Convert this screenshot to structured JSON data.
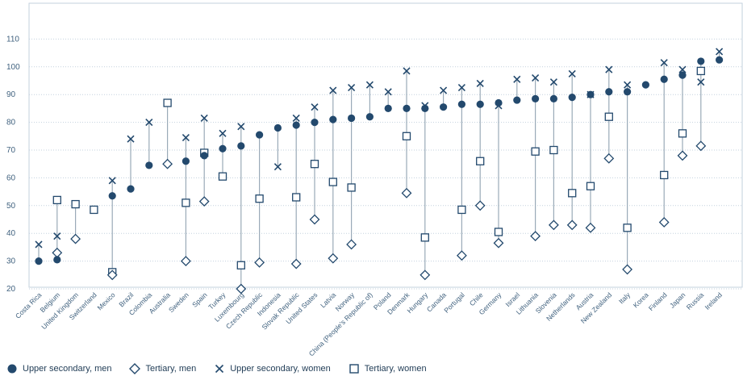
{
  "chart_data": {
    "type": "scatter",
    "title": "",
    "xlabel": "",
    "ylabel": "",
    "ylim": [
      15,
      112
    ],
    "yticks": [
      20,
      30,
      40,
      50,
      60,
      70,
      80,
      90,
      100,
      110
    ],
    "categories": [
      "Costa Rica",
      "Belgium",
      "United Kingdom",
      "Switzerland",
      "Mexico",
      "Brazil",
      "Colombia",
      "Australia",
      "Sweden",
      "Spain",
      "Turkey",
      "Luxembourg",
      "Czech Republic",
      "Indonesia",
      "Slovak Republic",
      "United States",
      "Latvia",
      "Norway",
      "China (People's Republic of)",
      "Poland",
      "Denmark",
      "Hungary",
      "Canada",
      "Portugal",
      "Chile",
      "Germany",
      "Israel",
      "Lithuania",
      "Slovenia",
      "Netherlands",
      "Austria",
      "New Zealand",
      "Italy",
      "Korea",
      "Finland",
      "Japan",
      "Russia",
      "Ireland"
    ],
    "series": [
      {
        "name": "Upper secondary, men",
        "marker": "circle",
        "values": [
          30,
          30.5,
          null,
          null,
          53.5,
          56,
          64.5,
          null,
          66,
          68,
          70.5,
          71.5,
          75.5,
          78,
          79,
          80,
          81,
          81.5,
          82,
          85,
          85,
          85,
          85.5,
          86.5,
          86.5,
          87,
          88,
          88.5,
          88.5,
          89,
          90,
          91,
          91,
          93.5,
          95.5,
          97,
          102,
          102.5
        ]
      },
      {
        "name": "Tertiary, men",
        "marker": "diamond",
        "values": [
          null,
          33,
          38,
          null,
          25,
          null,
          null,
          65,
          30,
          51.5,
          null,
          20,
          29.5,
          null,
          29,
          45,
          31,
          36,
          null,
          null,
          54.5,
          25,
          null,
          32,
          50,
          36.5,
          null,
          39,
          43,
          43,
          42,
          67,
          27,
          null,
          44,
          68,
          71.5,
          null
        ]
      },
      {
        "name": "Upper secondary, women",
        "marker": "x",
        "values": [
          36,
          39,
          null,
          null,
          59,
          74,
          80,
          null,
          74.5,
          81.5,
          76,
          78.5,
          null,
          64,
          81.5,
          85.5,
          91.5,
          92.5,
          93.5,
          91,
          98.5,
          86,
          91.5,
          92.5,
          94,
          86,
          95.5,
          96,
          94.5,
          97.5,
          90,
          99,
          93.5,
          null,
          101.5,
          99,
          94.5,
          105.5
        ]
      },
      {
        "name": "Tertiary, women",
        "marker": "square",
        "values": [
          null,
          52,
          50.5,
          48.5,
          26,
          null,
          null,
          87,
          51,
          69,
          60.5,
          28.5,
          52.5,
          null,
          53,
          65,
          58.5,
          56.5,
          null,
          null,
          75,
          38.5,
          null,
          48.5,
          66,
          40.5,
          null,
          69.5,
          70,
          54.5,
          57,
          82,
          42,
          null,
          61,
          76,
          98.5,
          null
        ]
      }
    ]
  },
  "legend": {
    "items": [
      {
        "label": "Upper secondary, men"
      },
      {
        "label": "Tertiary, men"
      },
      {
        "label": "Upper secondary, women"
      },
      {
        "label": "Tertiary, women"
      }
    ]
  },
  "colors": {
    "marker": "#23496d",
    "line": "#9aaab8",
    "grid": "#c3d1de",
    "axis_text": "#41627f",
    "tab": "#ffffff"
  }
}
